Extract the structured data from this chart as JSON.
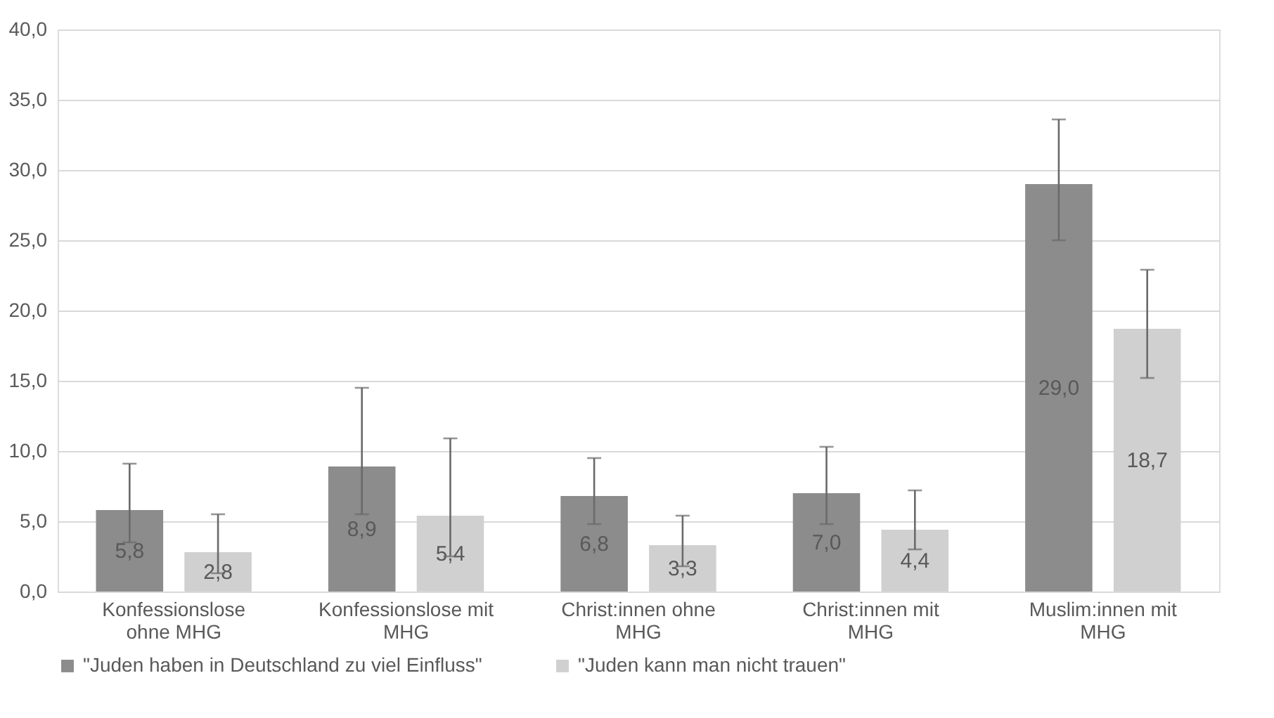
{
  "chart_data": {
    "type": "bar",
    "categories": [
      "Konfessionslose ohne MHG",
      "Konfessionslose mit MHG",
      "Christ:innen ohne MHG",
      "Christ:innen mit MHG",
      "Muslim:innen mit MHG"
    ],
    "series": [
      {
        "name": "\"Juden haben in Deutschland zu viel Einfluss\"",
        "color": "#8c8c8c",
        "values": [
          5.8,
          8.9,
          6.8,
          7.0,
          29.0
        ],
        "value_labels": [
          "5,8",
          "8,9",
          "6,8",
          "7,0",
          "29,0"
        ],
        "errors": [
          [
            3.5,
            9.1
          ],
          [
            5.5,
            14.5
          ],
          [
            4.8,
            9.5
          ],
          [
            4.8,
            10.3
          ],
          [
            25.0,
            33.6
          ]
        ]
      },
      {
        "name": "\"Juden kann man nicht trauen\"",
        "color": "#d0d0d0",
        "values": [
          2.8,
          5.4,
          3.3,
          4.4,
          18.7
        ],
        "value_labels": [
          "2,8",
          "5,4",
          "3,3",
          "4,4",
          "18,7"
        ],
        "errors": [
          [
            1.3,
            5.5
          ],
          [
            2.5,
            10.9
          ],
          [
            1.8,
            5.4
          ],
          [
            3.0,
            7.2
          ],
          [
            15.2,
            22.9
          ]
        ]
      }
    ],
    "ylim": [
      0,
      40
    ],
    "yticks": [
      {
        "value": 0,
        "label": "0,0"
      },
      {
        "value": 5,
        "label": "5,0"
      },
      {
        "value": 10,
        "label": "10,0"
      },
      {
        "value": 15,
        "label": "15,0"
      },
      {
        "value": 20,
        "label": "20,0"
      },
      {
        "value": 25,
        "label": "25,0"
      },
      {
        "value": 30,
        "label": "30,0"
      },
      {
        "value": 35,
        "label": "35,0"
      },
      {
        "value": 40,
        "label": "40,0"
      }
    ],
    "grid": "y",
    "legend": "bottom"
  }
}
